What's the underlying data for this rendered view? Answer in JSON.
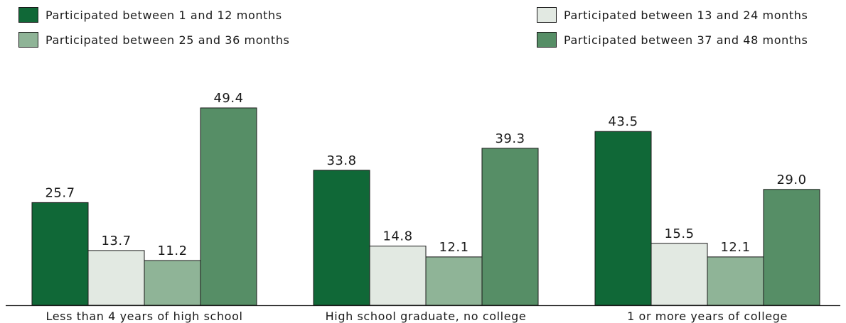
{
  "chart_data": {
    "type": "bar",
    "categories": [
      "Less than 4 years of high school",
      "High school graduate, no college",
      "1 or more years of college"
    ],
    "series": [
      {
        "name": "Participated between 1 and 12 months",
        "values": [
          25.7,
          33.8,
          43.5
        ]
      },
      {
        "name": "Participated between 13 and 24 months",
        "values": [
          13.7,
          14.8,
          15.5
        ]
      },
      {
        "name": "Participated between 25 and 36 months",
        "values": [
          11.2,
          12.1,
          12.1
        ]
      },
      {
        "name": "Participated between 37 and 48 months",
        "values": [
          49.4,
          39.3,
          29.0
        ]
      }
    ],
    "ylim": [
      0,
      55
    ],
    "grid": false,
    "legend_position": "top",
    "colors": [
      "#106837",
      "#e2e9e2",
      "#8fb497",
      "#568e66"
    ]
  }
}
